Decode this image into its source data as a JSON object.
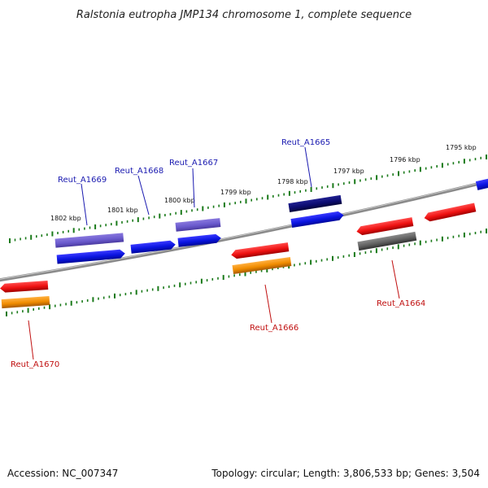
{
  "title": "Ralstonia eutropha JMP134 chromosome 1, complete sequence",
  "footer": {
    "accession": "Accession: NC_007347",
    "stats": "Topology: circular; Length: 3,806,533 bp; Genes: 3,504"
  },
  "scale_labels": [
    "1802 kbp",
    "1801 kbp",
    "1800 kbp",
    "1799 kbp",
    "1798 kbp",
    "1797 kbp",
    "1796 kbp",
    "1795 kbp"
  ],
  "gene_labels": {
    "forward": [
      "Reut_A1669",
      "Reut_A1668",
      "Reut_A1667",
      "Reut_A1665"
    ],
    "reverse": [
      "Reut_A1670",
      "Reut_A1666",
      "Reut_A1664"
    ]
  },
  "colors": {
    "backbone": "#8a8a8a",
    "tick": "#1a7a1a",
    "forward_gene": "#0a14e0",
    "forward_gene_light": "#6a5acd",
    "forward_gene_dark": "#0c0c70",
    "reverse_gene": "#ee1111",
    "reverse_gene_orange": "#f08c00",
    "reverse_gene_gray": "#606060"
  }
}
